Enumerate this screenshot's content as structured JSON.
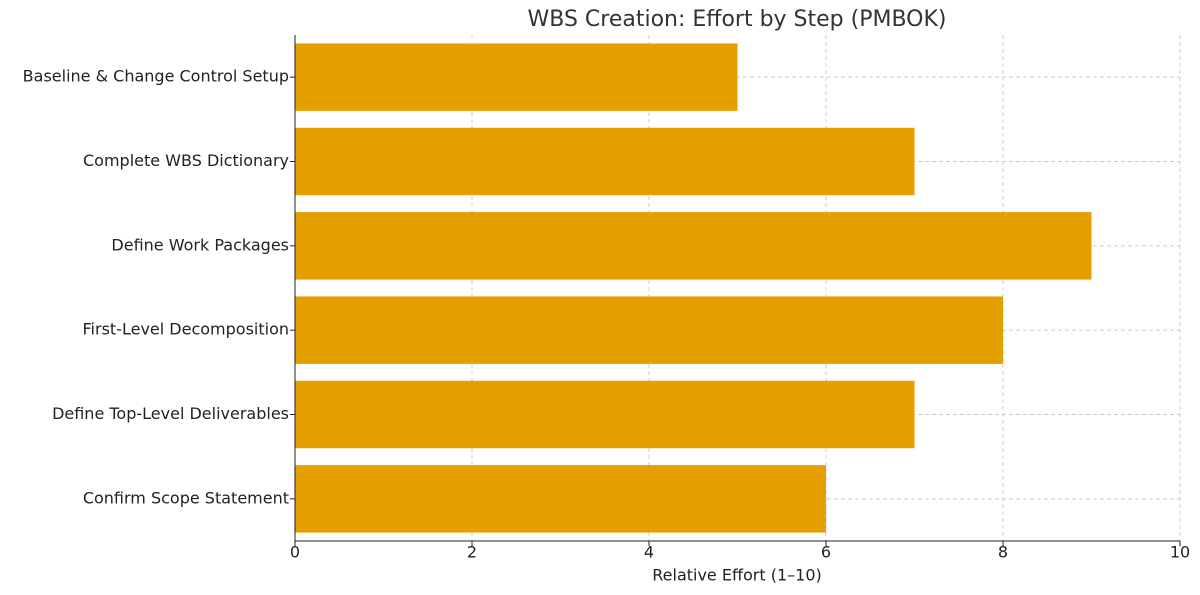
{
  "chart_data": {
    "type": "barh",
    "title": "WBS Creation: Effort by Step (PMBOK)",
    "x_label": "Relative Effort (1–10)",
    "categories": [
      "Baseline & Change Control Setup",
      "Complete WBS Dictionary",
      "Define Work Packages",
      "First-Level Decomposition",
      "Define Top-Level Deliverables",
      "Confirm Scope Statement"
    ],
    "values": [
      5,
      7,
      9,
      8,
      7,
      6
    ],
    "color": "#e5a000",
    "xlim": [
      0,
      10
    ],
    "xticks": [
      0,
      2,
      4,
      6,
      8,
      10
    ],
    "grid": true
  }
}
